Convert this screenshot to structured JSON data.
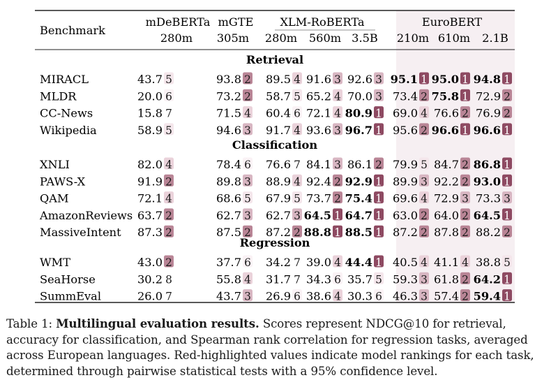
{
  "table": {
    "benchmark_header": "Benchmark",
    "models": [
      {
        "name": "mDeBERTa",
        "sizes": [
          "280m"
        ]
      },
      {
        "name": "mGTE",
        "sizes": [
          "305m"
        ]
      },
      {
        "name": "XLM-RoBERTa",
        "sizes": [
          "280m",
          "560m",
          "3.5B"
        ]
      },
      {
        "name": "EuroBERT",
        "sizes": [
          "210m",
          "610m",
          "2.1B"
        ]
      }
    ],
    "sections": [
      {
        "title": "Retrieval",
        "rows": [
          {
            "name": "MIRACL",
            "cells": [
              {
                "v": "43.7",
                "r": 5
              },
              {
                "v": "93.8",
                "r": 2
              },
              {
                "v": "89.5",
                "r": 4
              },
              {
                "v": "91.6",
                "r": 3
              },
              {
                "v": "92.6",
                "r": 3
              },
              {
                "v": "95.1",
                "r": 1,
                "b": true
              },
              {
                "v": "95.0",
                "r": 1,
                "b": true
              },
              {
                "v": "94.8",
                "r": 1,
                "b": true
              }
            ]
          },
          {
            "name": "MLDR",
            "cells": [
              {
                "v": "20.0",
                "r": 6
              },
              {
                "v": "73.2",
                "r": 2
              },
              {
                "v": "58.7",
                "r": 5
              },
              {
                "v": "65.2",
                "r": 4
              },
              {
                "v": "70.0",
                "r": 3
              },
              {
                "v": "73.4",
                "r": 2
              },
              {
                "v": "75.8",
                "r": 1,
                "b": true
              },
              {
                "v": "72.9",
                "r": 2
              }
            ]
          },
          {
            "name": "CC-News",
            "cells": [
              {
                "v": "15.8",
                "r": 7
              },
              {
                "v": "71.5",
                "r": 4
              },
              {
                "v": "60.4",
                "r": 6
              },
              {
                "v": "72.1",
                "r": 4
              },
              {
                "v": "80.9",
                "r": 1,
                "b": true
              },
              {
                "v": "69.0",
                "r": 4
              },
              {
                "v": "76.6",
                "r": 2
              },
              {
                "v": "76.9",
                "r": 2
              }
            ]
          },
          {
            "name": "Wikipedia",
            "cells": [
              {
                "v": "58.9",
                "r": 5
              },
              {
                "v": "94.6",
                "r": 3
              },
              {
                "v": "91.7",
                "r": 4
              },
              {
                "v": "93.6",
                "r": 3
              },
              {
                "v": "96.7",
                "r": 1,
                "b": true
              },
              {
                "v": "95.6",
                "r": 2
              },
              {
                "v": "96.6",
                "r": 1,
                "b": true
              },
              {
                "v": "96.6",
                "r": 1,
                "b": true
              }
            ]
          }
        ]
      },
      {
        "title": "Classification",
        "rows": [
          {
            "name": "XNLI",
            "cells": [
              {
                "v": "82.0",
                "r": 4
              },
              {
                "v": "78.4",
                "r": 6
              },
              {
                "v": "76.6",
                "r": 7
              },
              {
                "v": "84.1",
                "r": 3
              },
              {
                "v": "86.1",
                "r": 2
              },
              {
                "v": "79.9",
                "r": 5
              },
              {
                "v": "84.7",
                "r": 2
              },
              {
                "v": "86.8",
                "r": 1,
                "b": true
              }
            ]
          },
          {
            "name": "PAWS-X",
            "cells": [
              {
                "v": "91.9",
                "r": 2
              },
              {
                "v": "89.8",
                "r": 3
              },
              {
                "v": "88.9",
                "r": 4
              },
              {
                "v": "92.4",
                "r": 2
              },
              {
                "v": "92.9",
                "r": 1,
                "b": true
              },
              {
                "v": "89.9",
                "r": 3
              },
              {
                "v": "92.2",
                "r": 2
              },
              {
                "v": "93.0",
                "r": 1,
                "b": true
              }
            ]
          },
          {
            "name": "QAM",
            "cells": [
              {
                "v": "72.1",
                "r": 4
              },
              {
                "v": "68.6",
                "r": 5
              },
              {
                "v": "67.9",
                "r": 5
              },
              {
                "v": "73.7",
                "r": 2
              },
              {
                "v": "75.4",
                "r": 1,
                "b": true
              },
              {
                "v": "69.6",
                "r": 4
              },
              {
                "v": "72.9",
                "r": 3
              },
              {
                "v": "73.3",
                "r": 3
              }
            ]
          },
          {
            "name": "AmazonReviews",
            "cells": [
              {
                "v": "63.7",
                "r": 2
              },
              {
                "v": "62.7",
                "r": 3
              },
              {
                "v": "62.7",
                "r": 3
              },
              {
                "v": "64.5",
                "r": 1,
                "b": true
              },
              {
                "v": "64.7",
                "r": 1,
                "b": true
              },
              {
                "v": "63.0",
                "r": 2
              },
              {
                "v": "64.0",
                "r": 2
              },
              {
                "v": "64.5",
                "r": 1,
                "b": true
              }
            ]
          },
          {
            "name": "MassiveIntent",
            "cells": [
              {
                "v": "87.3",
                "r": 2
              },
              {
                "v": "87.5",
                "r": 2
              },
              {
                "v": "87.2",
                "r": 2
              },
              {
                "v": "88.8",
                "r": 1,
                "b": true
              },
              {
                "v": "88.5",
                "r": 1,
                "b": true
              },
              {
                "v": "87.2",
                "r": 2
              },
              {
                "v": "87.8",
                "r": 2
              },
              {
                "v": "88.2",
                "r": 2
              }
            ]
          }
        ]
      },
      {
        "title": "Regression",
        "rows": [
          {
            "name": "WMT",
            "cells": [
              {
                "v": "43.0",
                "r": 2
              },
              {
                "v": "37.7",
                "r": 6
              },
              {
                "v": "34.2",
                "r": 7
              },
              {
                "v": "39.0",
                "r": 4
              },
              {
                "v": "44.4",
                "r": 1,
                "b": true
              },
              {
                "v": "40.5",
                "r": 4
              },
              {
                "v": "41.1",
                "r": 4
              },
              {
                "v": "38.8",
                "r": 5
              }
            ]
          },
          {
            "name": "SeaHorse",
            "cells": [
              {
                "v": "30.2",
                "r": 8
              },
              {
                "v": "55.8",
                "r": 4
              },
              {
                "v": "31.7",
                "r": 7
              },
              {
                "v": "34.3",
                "r": 6
              },
              {
                "v": "35.7",
                "r": 5
              },
              {
                "v": "59.3",
                "r": 3
              },
              {
                "v": "61.8",
                "r": 2
              },
              {
                "v": "64.2",
                "r": 1,
                "b": true
              }
            ]
          },
          {
            "name": "SummEval",
            "cells": [
              {
                "v": "26.0",
                "r": 7
              },
              {
                "v": "43.7",
                "r": 3
              },
              {
                "v": "26.9",
                "r": 6
              },
              {
                "v": "38.6",
                "r": 4
              },
              {
                "v": "30.3",
                "r": 6
              },
              {
                "v": "46.3",
                "r": 3
              },
              {
                "v": "57.4",
                "r": 2
              },
              {
                "v": "59.4",
                "r": 1,
                "b": true
              }
            ]
          }
        ]
      }
    ],
    "rank_colors": {
      "1": {
        "bg": "#8e4a62",
        "fg": "#ffffff"
      },
      "2": {
        "bg": "#b98596",
        "fg": "#1a1a1a"
      },
      "3": {
        "bg": "#d8b6c2",
        "fg": "#1a1a1a"
      },
      "4": {
        "bg": "#ead2da",
        "fg": "#1a1a1a"
      },
      "5": {
        "bg": "#f4e6eb",
        "fg": "#1a1a1a"
      },
      "6": {
        "bg": "#faf2f5",
        "fg": "#1a1a1a"
      },
      "7": {
        "bg": "#ffffff",
        "fg": "#1a1a1a"
      },
      "8": {
        "bg": "#ffffff",
        "fg": "#1a1a1a"
      }
    },
    "eurobert_band_color": "#f6eff2"
  },
  "caption": {
    "label": "Table 1:",
    "title": "Multilingual evaluation results.",
    "text": "Scores represent NDCG@10 for retrieval, accuracy for classification, and Spearman rank correlation for regression tasks, averaged across European languages. Red-highlighted values indicate model rankings for each task, determined through pairwise statistical tests with a 95% confidence level."
  }
}
